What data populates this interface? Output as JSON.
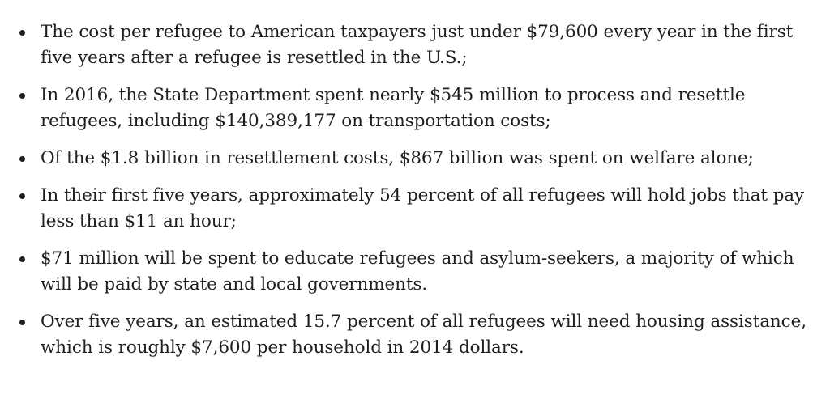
{
  "bullets": [
    {
      "text": "The cost per refugee to American taxpayers just under $79,600 every year in the first five years after a refugee is resettled in the U.S.;"
    },
    {
      "text": "In 2016, the State Department spent nearly $545 million to process and resettle refugees, including $140,389,177 on transportation costs;"
    },
    {
      "text": "Of the $1.8 billion in resettlement costs, $867 billion was spent on welfare alone;"
    },
    {
      "text": "In their first five years, approximately 54 percent of all refugees will hold jobs that pay less than $11 an hour;"
    },
    {
      "text": "$71 million will be spent to educate refugees and asylum-seekers, a majority of which will be paid by state and local governments."
    },
    {
      "text": "Over five years, an estimated 15.7 percent of all refugees will need housing assistance, which is roughly $7,600 per household in 2014 dollars."
    }
  ]
}
